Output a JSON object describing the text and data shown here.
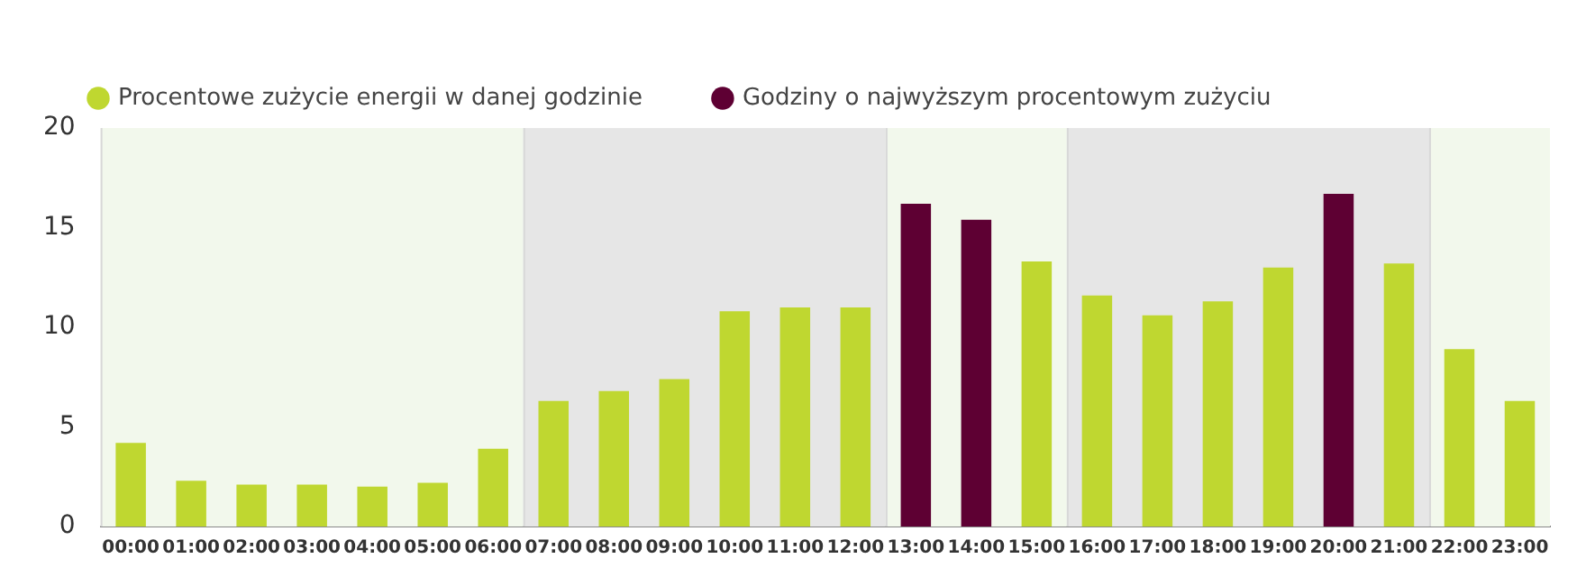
{
  "chart_data": {
    "type": "bar",
    "categories": [
      "00:00",
      "01:00",
      "02:00",
      "03:00",
      "04:00",
      "05:00",
      "06:00",
      "07:00",
      "08:00",
      "09:00",
      "10:00",
      "11:00",
      "12:00",
      "13:00",
      "14:00",
      "15:00",
      "16:00",
      "17:00",
      "18:00",
      "19:00",
      "20:00",
      "21:00",
      "22:00",
      "23:00"
    ],
    "series": [
      {
        "name": "Procentowe zużycie energii w danej godzinie",
        "color": "#bfd730",
        "values": [
          4.2,
          2.3,
          2.1,
          2.1,
          2.0,
          2.2,
          3.9,
          6.3,
          6.8,
          7.4,
          10.8,
          11.0,
          11.0,
          null,
          null,
          13.3,
          11.6,
          10.6,
          11.3,
          13.0,
          null,
          13.2,
          8.9,
          6.3
        ]
      },
      {
        "name": "Godziny o najwyższym procentowym zużyciu",
        "color": "#5e0033",
        "values": [
          null,
          null,
          null,
          null,
          null,
          null,
          null,
          null,
          null,
          null,
          null,
          null,
          null,
          16.2,
          15.4,
          null,
          null,
          null,
          null,
          null,
          16.7,
          null,
          null,
          null
        ]
      }
    ],
    "ylim": [
      0,
      20
    ],
    "yticks": [
      0,
      5,
      10,
      15,
      20
    ],
    "grid": false,
    "legend": "top left",
    "bands": [
      {
        "axis": "x",
        "from": "00:00",
        "to": "06:00",
        "color": "#f2f8ec"
      },
      {
        "axis": "x",
        "from": "07:00",
        "to": "12:00",
        "color": "#e6e6e6"
      },
      {
        "axis": "x",
        "from": "13:00",
        "to": "15:00",
        "color": "#f2f8ec"
      },
      {
        "axis": "x",
        "from": "16:00",
        "to": "21:00",
        "color": "#e6e6e6"
      },
      {
        "axis": "x",
        "from": "22:00",
        "to": "23:00",
        "color": "#f2f8ec"
      }
    ]
  }
}
